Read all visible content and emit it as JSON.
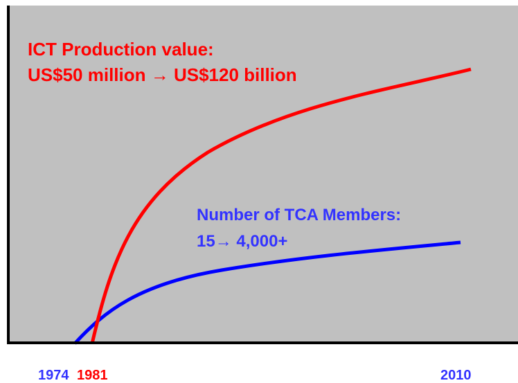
{
  "labels": {
    "production_title": "ICT Production value:",
    "production_range": "US$50 million → US$120 billion",
    "members_title": "Number of TCA Members:",
    "members_range": "15→ 4,000+"
  },
  "years": {
    "start_members": "1974",
    "start_production": "1981",
    "end": "2010"
  }
}
